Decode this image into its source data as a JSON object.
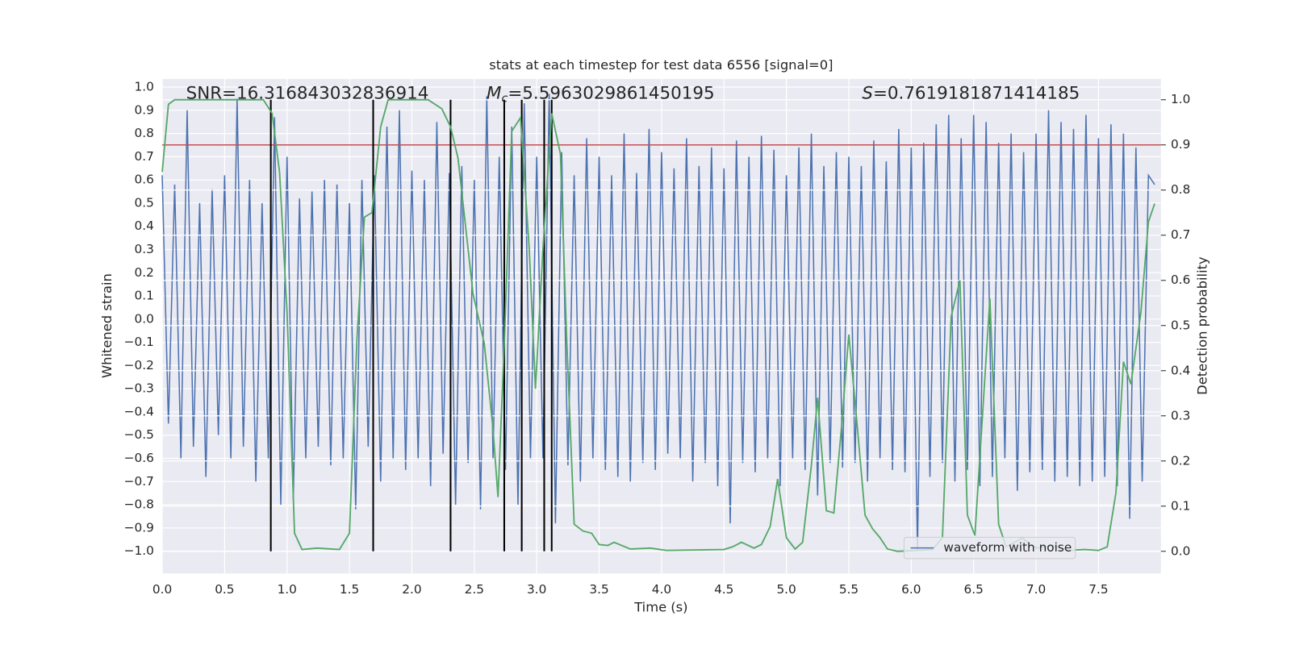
{
  "chart_data": {
    "type": "line",
    "title": "stats at each timestep for test data 6556 [signal=0]",
    "xlabel": "Time (s)",
    "ylabel": "Whitened strain",
    "y2label": "Detection probability",
    "xlim": [
      0,
      8.0
    ],
    "ylim": [
      -1.096,
      1.035
    ],
    "y2lim": [
      -0.049,
      1.046
    ],
    "xticks": [
      {
        "value": 0,
        "label": "0.0"
      },
      0.5,
      {
        "value": 1,
        "label": "1.0"
      },
      1.5,
      {
        "value": 2,
        "label": "2.0"
      },
      2.5,
      {
        "value": 3,
        "label": "3.0"
      },
      3.5,
      {
        "value": 4,
        "label": "4.0"
      },
      4.5,
      {
        "value": 5,
        "label": "5.0"
      },
      5.5,
      {
        "value": 6,
        "label": "6.0"
      },
      6.5,
      {
        "value": 7,
        "label": "7.0"
      },
      7.5
    ],
    "yticks": [
      {
        "value": -1,
        "label": "−1.0"
      },
      {
        "value": -0.9,
        "label": "−0.9"
      },
      {
        "value": -0.8,
        "label": "−0.8"
      },
      {
        "value": -0.7,
        "label": "−0.7"
      },
      {
        "value": -0.6,
        "label": "−0.6"
      },
      {
        "value": -0.5,
        "label": "−0.5"
      },
      {
        "value": -0.4,
        "label": "−0.4"
      },
      {
        "value": -0.3,
        "label": "−0.3"
      },
      {
        "value": -0.2,
        "label": "−0.2"
      },
      {
        "value": -0.1,
        "label": "−0.1"
      },
      {
        "value": 0,
        "label": "0.0"
      },
      0.1,
      0.2,
      0.3,
      0.4,
      0.5,
      0.6,
      0.7,
      0.8,
      0.9,
      {
        "value": 1,
        "label": "1.0"
      }
    ],
    "y2ticks": [
      {
        "value": 0,
        "label": "0.0"
      },
      0.1,
      0.2,
      0.3,
      0.4,
      0.5,
      0.6,
      0.7,
      0.8,
      0.9,
      {
        "value": 1,
        "label": "1.0"
      }
    ],
    "grid": true,
    "legend": "lower right",
    "series": [
      {
        "name": "waveform with noise",
        "color": "#4c72b0",
        "x": [
          0,
          0.05,
          0.1,
          0.15,
          0.2,
          0.25,
          0.3,
          0.35,
          0.4,
          0.45,
          0.5,
          0.55,
          0.6,
          0.65,
          0.7,
          0.75,
          0.8,
          0.85,
          0.9,
          0.95,
          1,
          1.05,
          1.1,
          1.15,
          1.2,
          1.25,
          1.3,
          1.35,
          1.4,
          1.45,
          1.5,
          1.55,
          1.6,
          1.65,
          1.7,
          1.75,
          1.8,
          1.85,
          1.9,
          1.95,
          2,
          2.05,
          2.1,
          2.15,
          2.2,
          2.25,
          2.3,
          2.35,
          2.4,
          2.45,
          2.5,
          2.55,
          2.6,
          2.65,
          2.7,
          2.75,
          2.8,
          2.85,
          2.9,
          2.95,
          3,
          3.05,
          3.1,
          3.15,
          3.2,
          3.25,
          3.3,
          3.35,
          3.4,
          3.45,
          3.5,
          3.55,
          3.6,
          3.65,
          3.7,
          3.75,
          3.8,
          3.85,
          3.9,
          3.95,
          4,
          4.05,
          4.1,
          4.15,
          4.2,
          4.25,
          4.3,
          4.35,
          4.4,
          4.45,
          4.5,
          4.55,
          4.6,
          4.65,
          4.7,
          4.75,
          4.8,
          4.85,
          4.9,
          4.95,
          5,
          5.05,
          5.1,
          5.15,
          5.2,
          5.25,
          5.3,
          5.35,
          5.4,
          5.45,
          5.5,
          5.55,
          5.6,
          5.65,
          5.7,
          5.75,
          5.8,
          5.85,
          5.9,
          5.95,
          6,
          6.05,
          6.1,
          6.15,
          6.2,
          6.25,
          6.3,
          6.35,
          6.4,
          6.45,
          6.5,
          6.55,
          6.6,
          6.65,
          6.7,
          6.75,
          6.8,
          6.85,
          6.9,
          6.95,
          7,
          7.05,
          7.1,
          7.15,
          7.2,
          7.25,
          7.3,
          7.35,
          7.4,
          7.45,
          7.5,
          7.55,
          7.6,
          7.65,
          7.7,
          7.75,
          7.8,
          7.85,
          7.9,
          7.95
        ],
        "values": [
          0.62,
          -0.45,
          0.58,
          -0.6,
          0.9,
          -0.55,
          0.5,
          -0.68,
          0.56,
          -0.5,
          0.62,
          -0.6,
          0.95,
          -0.55,
          0.6,
          -0.7,
          0.5,
          -0.6,
          0.87,
          -0.8,
          0.7,
          -0.78,
          0.52,
          -0.6,
          0.55,
          -0.55,
          0.6,
          -0.63,
          0.58,
          -0.6,
          0.5,
          -0.82,
          0.6,
          -0.55,
          0.62,
          -0.7,
          0.83,
          -0.6,
          0.9,
          -0.65,
          0.64,
          -0.6,
          0.6,
          -0.72,
          0.85,
          -0.58,
          0.63,
          -0.8,
          0.66,
          -0.62,
          0.6,
          -0.82,
          0.96,
          -0.6,
          0.7,
          -0.65,
          0.83,
          -0.8,
          0.93,
          -0.6,
          0.7,
          -0.6,
          0.97,
          -0.88,
          0.72,
          -0.63,
          0.62,
          -0.7,
          0.78,
          -0.6,
          0.7,
          -0.65,
          0.62,
          -0.68,
          0.8,
          -0.7,
          0.63,
          -0.62,
          0.82,
          -0.65,
          0.72,
          -0.58,
          0.65,
          -0.6,
          0.78,
          -0.7,
          0.66,
          -0.62,
          0.74,
          -0.72,
          0.65,
          -0.88,
          0.77,
          -0.62,
          0.7,
          -0.66,
          0.79,
          -0.6,
          0.73,
          -0.72,
          0.62,
          -0.6,
          0.74,
          -0.65,
          0.8,
          -0.76,
          0.66,
          -0.62,
          0.72,
          -0.64,
          0.7,
          -0.62,
          0.66,
          -0.7,
          0.77,
          -0.6,
          0.68,
          -0.65,
          0.82,
          -0.66,
          0.74,
          -1.0,
          0.76,
          -0.68,
          0.84,
          -0.62,
          0.88,
          -0.7,
          0.78,
          -0.65,
          0.88,
          -0.72,
          0.85,
          -0.68,
          0.76,
          -0.6,
          0.8,
          -0.74,
          0.72,
          -0.66,
          0.8,
          -0.65,
          0.9,
          -0.7,
          0.85,
          -0.68,
          0.82,
          -0.72,
          0.88,
          -0.7,
          0.78,
          -0.68,
          0.84,
          -0.72,
          0.8,
          -0.86,
          0.74,
          -0.7,
          0.62,
          0.58
        ]
      },
      {
        "color": "#55a868",
        "axis": "y2",
        "x": [
          0,
          0.05,
          0.1,
          0.81,
          0.88,
          0.94,
          1.0,
          1.06,
          1.12,
          1.24,
          1.42,
          1.5,
          1.56,
          1.62,
          1.68,
          1.75,
          1.81,
          2.13,
          2.24,
          2.31,
          2.37,
          2.49,
          2.58,
          2.65,
          2.69,
          2.74,
          2.8,
          2.87,
          2.94,
          2.99,
          3.05,
          3.12,
          3.19,
          3.24,
          3.3,
          3.37,
          3.44,
          3.5,
          3.57,
          3.62,
          3.75,
          3.91,
          4.04,
          4.5,
          4.57,
          4.64,
          4.74,
          4.8,
          4.87,
          4.93,
          5.0,
          5.07,
          5.13,
          5.2,
          5.25,
          5.32,
          5.38,
          5.44,
          5.5,
          5.57,
          5.63,
          5.69,
          5.75,
          5.81,
          5.89,
          6.17,
          6.25,
          6.32,
          6.39,
          6.45,
          6.51,
          6.63,
          6.7,
          6.76,
          6.83,
          6.89,
          6.95,
          7.01,
          7.13,
          7.26,
          7.39,
          7.5,
          7.57,
          7.64,
          7.7,
          7.76,
          7.84,
          7.9,
          7.95
        ],
        "values": [
          0.84,
          0.99,
          1.0,
          1.0,
          0.97,
          0.84,
          0.53,
          0.04,
          0.004,
          0.007,
          0.004,
          0.04,
          0.47,
          0.74,
          0.75,
          0.94,
          1.0,
          1.0,
          0.98,
          0.94,
          0.87,
          0.57,
          0.46,
          0.27,
          0.12,
          0.46,
          0.93,
          0.96,
          0.67,
          0.36,
          0.67,
          0.97,
          0.88,
          0.47,
          0.06,
          0.045,
          0.04,
          0.015,
          0.013,
          0.02,
          0.005,
          0.007,
          0.002,
          0.004,
          0.01,
          0.02,
          0.007,
          0.015,
          0.055,
          0.16,
          0.03,
          0.005,
          0.02,
          0.19,
          0.34,
          0.09,
          0.085,
          0.27,
          0.48,
          0.27,
          0.08,
          0.05,
          0.03,
          0.005,
          0,
          0.004,
          0.03,
          0.52,
          0.6,
          0.08,
          0.035,
          0.56,
          0.06,
          0.01,
          0.02,
          0.03,
          0.015,
          0.007,
          0.013,
          0.002,
          0.004,
          0.002,
          0.01,
          0.13,
          0.42,
          0.37,
          0.53,
          0.73,
          0.77
        ]
      }
    ],
    "hline": {
      "value": 0.9,
      "axis": "y2",
      "color": "#c44e52"
    },
    "vlines": {
      "x": [
        0.87,
        1.69,
        2.31,
        2.74,
        2.88,
        3.06,
        3.12
      ],
      "color": "#000000"
    },
    "annotations": [
      {
        "text": "SNR=16.316843032836914"
      },
      {
        "symbol": "M",
        "subscript": "c",
        "text": "=5.5963029861450195"
      },
      {
        "symbol": "S",
        "text": "=0.7619181871414185"
      }
    ]
  }
}
